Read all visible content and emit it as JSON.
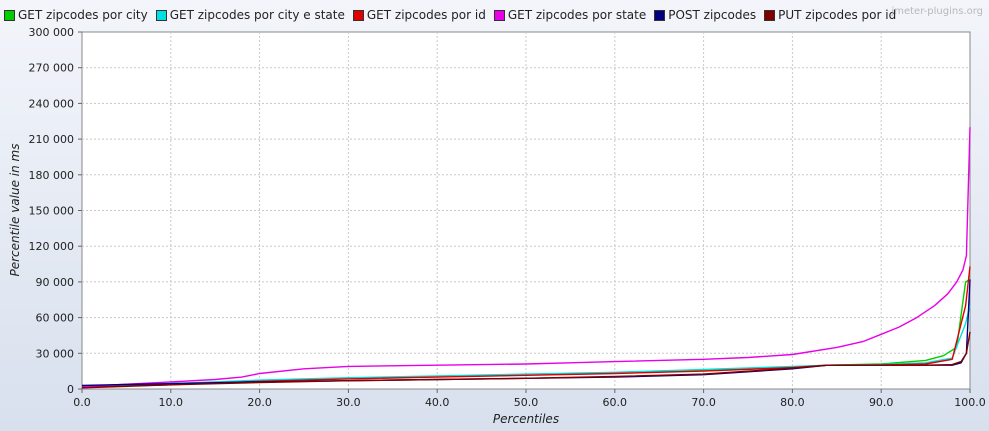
{
  "watermark": "jmeter-plugins.org",
  "chart_data": {
    "type": "line",
    "title": "",
    "xlabel": "Percentiles",
    "ylabel": "Percentile value in ms",
    "xlim": [
      0,
      100
    ],
    "ylim": [
      0,
      300000
    ],
    "x_ticks": [
      "0.0",
      "10.0",
      "20.0",
      "30.0",
      "40.0",
      "50.0",
      "60.0",
      "70.0",
      "80.0",
      "90.0",
      "100.0"
    ],
    "y_ticks": [
      "0",
      "30 000",
      "60 000",
      "90 000",
      "120 000",
      "150 000",
      "180 000",
      "210 000",
      "240 000",
      "270 000",
      "300 000"
    ],
    "grid": true,
    "legend_position": "top-left",
    "series": [
      {
        "name": "GET zipcodes por city",
        "color": "#00d000",
        "points": [
          [
            0,
            2000
          ],
          [
            10,
            4000
          ],
          [
            20,
            7000
          ],
          [
            30,
            9000
          ],
          [
            40,
            10500
          ],
          [
            50,
            12000
          ],
          [
            60,
            13500
          ],
          [
            70,
            16000
          ],
          [
            80,
            18500
          ],
          [
            84,
            20000
          ],
          [
            90,
            21000
          ],
          [
            95,
            24000
          ],
          [
            97,
            28000
          ],
          [
            98.5,
            35000
          ],
          [
            99.5,
            90000
          ],
          [
            100,
            92000
          ]
        ]
      },
      {
        "name": "GET zipcodes por city e state",
        "color": "#00e0e0",
        "points": [
          [
            0,
            2500
          ],
          [
            10,
            4500
          ],
          [
            20,
            7500
          ],
          [
            30,
            9500
          ],
          [
            40,
            11000
          ],
          [
            50,
            12500
          ],
          [
            60,
            14000
          ],
          [
            70,
            16500
          ],
          [
            80,
            19000
          ],
          [
            84,
            20000
          ],
          [
            90,
            20500
          ],
          [
            95,
            22000
          ],
          [
            98,
            26000
          ],
          [
            99.5,
            55000
          ],
          [
            100,
            70000
          ]
        ]
      },
      {
        "name": "GET zipcodes por id",
        "color": "#e00000",
        "points": [
          [
            0,
            1500
          ],
          [
            10,
            3500
          ],
          [
            20,
            6500
          ],
          [
            30,
            8500
          ],
          [
            40,
            10000
          ],
          [
            50,
            11500
          ],
          [
            60,
            13000
          ],
          [
            70,
            15000
          ],
          [
            80,
            18000
          ],
          [
            84,
            20000
          ],
          [
            90,
            20200
          ],
          [
            95,
            21000
          ],
          [
            98,
            25000
          ],
          [
            99.5,
            70000
          ],
          [
            100,
            103000
          ]
        ]
      },
      {
        "name": "GET zipcodes por state",
        "color": "#e800e8",
        "points": [
          [
            0,
            2000
          ],
          [
            5,
            4000
          ],
          [
            10,
            6000
          ],
          [
            15,
            8000
          ],
          [
            18,
            10000
          ],
          [
            20,
            13000
          ],
          [
            25,
            17000
          ],
          [
            30,
            19000
          ],
          [
            40,
            20000
          ],
          [
            50,
            21000
          ],
          [
            55,
            22000
          ],
          [
            60,
            23000
          ],
          [
            70,
            25000
          ],
          [
            75,
            26500
          ],
          [
            80,
            29000
          ],
          [
            85,
            35000
          ],
          [
            88,
            40000
          ],
          [
            90,
            46000
          ],
          [
            92,
            52000
          ],
          [
            94,
            60000
          ],
          [
            96,
            70000
          ],
          [
            97.5,
            80000
          ],
          [
            98.5,
            90000
          ],
          [
            99.2,
            100000
          ],
          [
            99.6,
            112000
          ],
          [
            100,
            220000
          ]
        ]
      },
      {
        "name": "POST zipcodes",
        "color": "#000080",
        "points": [
          [
            0,
            3000
          ],
          [
            10,
            4500
          ],
          [
            20,
            6000
          ],
          [
            30,
            7000
          ],
          [
            40,
            8000
          ],
          [
            50,
            9000
          ],
          [
            60,
            10000
          ],
          [
            70,
            12000
          ],
          [
            80,
            17000
          ],
          [
            84,
            20000
          ],
          [
            90,
            20000
          ],
          [
            95,
            20000
          ],
          [
            98,
            20000
          ],
          [
            99,
            22000
          ],
          [
            99.6,
            30000
          ],
          [
            100,
            92000
          ]
        ]
      },
      {
        "name": "PUT zipcodes por id",
        "color": "#800000",
        "points": [
          [
            0,
            1000
          ],
          [
            10,
            3500
          ],
          [
            20,
            5500
          ],
          [
            30,
            7000
          ],
          [
            40,
            8000
          ],
          [
            50,
            9000
          ],
          [
            60,
            10500
          ],
          [
            70,
            12500
          ],
          [
            80,
            17500
          ],
          [
            84,
            20000
          ],
          [
            90,
            20000
          ],
          [
            95,
            20000
          ],
          [
            98,
            20500
          ],
          [
            99,
            23000
          ],
          [
            99.6,
            30000
          ],
          [
            100,
            48000
          ]
        ]
      }
    ]
  }
}
